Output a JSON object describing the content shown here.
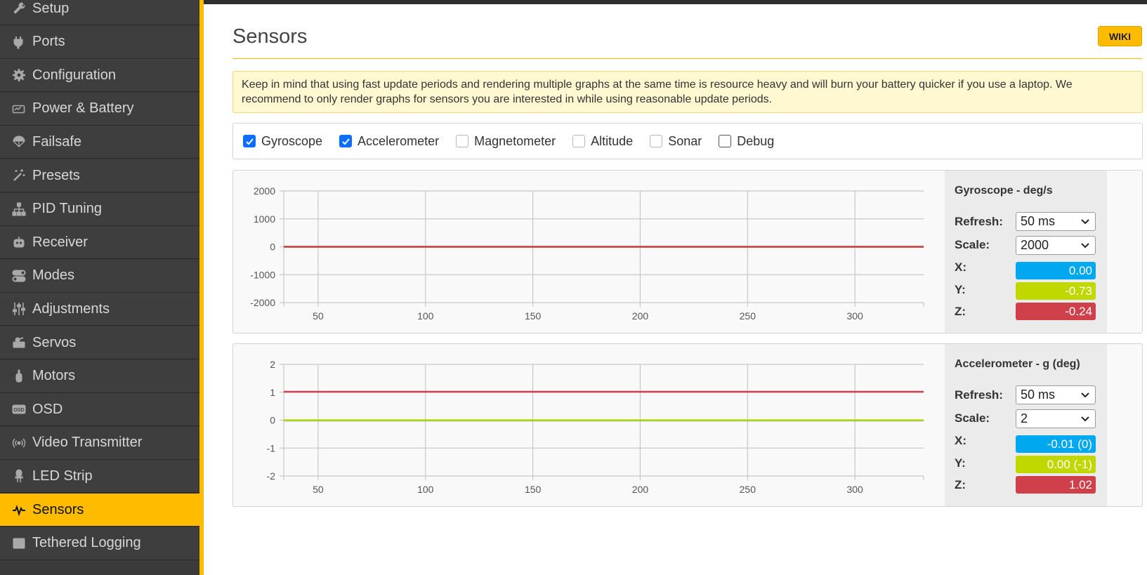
{
  "nav": {
    "items": [
      {
        "label": "Setup",
        "icon": "wrench-icon"
      },
      {
        "label": "Ports",
        "icon": "plug-icon"
      },
      {
        "label": "Configuration",
        "icon": "gear-icon"
      },
      {
        "label": "Power & Battery",
        "icon": "battery-icon"
      },
      {
        "label": "Failsafe",
        "icon": "parachute-icon"
      },
      {
        "label": "Presets",
        "icon": "magic-wand-icon"
      },
      {
        "label": "PID Tuning",
        "icon": "sitemap-icon"
      },
      {
        "label": "Receiver",
        "icon": "robot-icon"
      },
      {
        "label": "Modes",
        "icon": "toggle-icon"
      },
      {
        "label": "Adjustments",
        "icon": "sliders-icon"
      },
      {
        "label": "Servos",
        "icon": "servo-icon"
      },
      {
        "label": "Motors",
        "icon": "motor-icon"
      },
      {
        "label": "OSD",
        "icon": "osd-icon"
      },
      {
        "label": "Video Transmitter",
        "icon": "broadcast-icon"
      },
      {
        "label": "LED Strip",
        "icon": "led-icon"
      },
      {
        "label": "Sensors",
        "icon": "pulse-icon",
        "active": true
      },
      {
        "label": "Tethered Logging",
        "icon": "log-icon"
      }
    ]
  },
  "page": {
    "title": "Sensors",
    "wiki_label": "WIKI",
    "note": "Keep in mind that using fast update periods and rendering multiple graphs at the same time is resource heavy and will burn your battery quicker if you use a laptop. We recommend to only render graphs for sensors you are interested in while using reasonable update periods."
  },
  "sensors": [
    {
      "label": "Gyroscope",
      "checked": true
    },
    {
      "label": "Accelerometer",
      "checked": true
    },
    {
      "label": "Magnetometer",
      "checked": false
    },
    {
      "label": "Altitude",
      "checked": false
    },
    {
      "label": "Sonar",
      "checked": false
    },
    {
      "label": "Debug",
      "checked": false
    }
  ],
  "gyro": {
    "title": "Gyroscope - deg/s",
    "refresh_label": "Refresh:",
    "refresh_value": "50 ms",
    "scale_label": "Scale:",
    "scale_value": "2000",
    "x_label": "X:",
    "x_value": "0.00",
    "y_label": "Y:",
    "y_value": "-0.73",
    "z_label": "Z:",
    "z_value": "-0.24"
  },
  "accel": {
    "title": "Accelerometer - g (deg)",
    "refresh_label": "Refresh:",
    "refresh_value": "50 ms",
    "scale_label": "Scale:",
    "scale_value": "2",
    "x_label": "X:",
    "x_value": "-0.01 (0)",
    "y_label": "Y:",
    "y_value": "0.00 (-1)",
    "z_label": "Z:",
    "z_value": "1.02"
  },
  "colors": {
    "x": "#00a8f0",
    "y": "#c1d700",
    "z": "#d0404a",
    "accent": "#ffbb00"
  },
  "chart_data": [
    {
      "type": "line",
      "xlim": [
        34,
        332
      ],
      "ylim": [
        -2000,
        2000
      ],
      "x_ticks": [
        50,
        100,
        150,
        200,
        250,
        300
      ],
      "y_ticks": [
        2000,
        1000,
        0,
        -1000,
        -2000
      ],
      "series": [
        {
          "color": "#00a8f0",
          "x": [
            34,
            332
          ],
          "values": [
            0,
            0
          ]
        },
        {
          "color": "#c1d700",
          "x": [
            34,
            332
          ],
          "values": [
            -0.73,
            -0.73
          ]
        },
        {
          "color": "#d0404a",
          "x": [
            34,
            332
          ],
          "values": [
            -0.24,
            -0.24
          ]
        }
      ]
    },
    {
      "type": "line",
      "xlim": [
        34,
        332
      ],
      "ylim": [
        -2,
        2
      ],
      "x_ticks": [
        50,
        100,
        150,
        200,
        250,
        300
      ],
      "y_ticks": [
        2,
        1,
        0,
        -1,
        -2
      ],
      "series": [
        {
          "color": "#00a8f0",
          "x": [
            34,
            332
          ],
          "values": [
            -0.01,
            -0.01
          ]
        },
        {
          "color": "#c1d700",
          "x": [
            34,
            332
          ],
          "values": [
            0.0,
            0.0
          ]
        },
        {
          "color": "#d0404a",
          "x": [
            34,
            332
          ],
          "values": [
            1.02,
            1.02
          ]
        }
      ]
    }
  ]
}
